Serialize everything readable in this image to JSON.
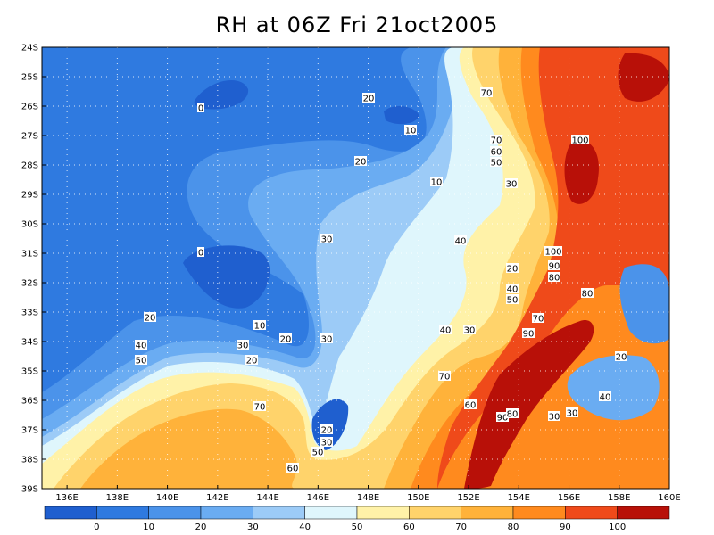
{
  "title": "RH at 06Z Fri 21oct2005",
  "lat_labels": [
    "24S",
    "25S",
    "26S",
    "27S",
    "28S",
    "29S",
    "30S",
    "31S",
    "32S",
    "33S",
    "34S",
    "35S",
    "36S",
    "37S",
    "38S",
    "39S"
  ],
  "lon_labels": [
    "136E",
    "138E",
    "140E",
    "142E",
    "144E",
    "146E",
    "148E",
    "150E",
    "152E",
    "154E",
    "156E",
    "158E",
    "160E"
  ],
  "colorbar": {
    "colors": [
      "#1f5fcf",
      "#2f7ae0",
      "#4b93ea",
      "#6aacf2",
      "#9ccbf7",
      "#dff6fc",
      "#fff2a8",
      "#ffd36b",
      "#ffb23a",
      "#ff8a1e",
      "#ef4a1a",
      "#b81008"
    ],
    "labels": [
      "0",
      "10",
      "20",
      "30",
      "40",
      "50",
      "60",
      "70",
      "80",
      "90",
      "100"
    ]
  },
  "contour_labels": [
    {
      "text": "70"
    },
    {
      "text": "20"
    },
    {
      "text": "0"
    },
    {
      "text": "10"
    },
    {
      "text": "70"
    },
    {
      "text": "60"
    },
    {
      "text": "50"
    },
    {
      "text": "100"
    },
    {
      "text": "20"
    },
    {
      "text": "10"
    },
    {
      "text": "30"
    },
    {
      "text": "30"
    },
    {
      "text": "40"
    },
    {
      "text": "0"
    },
    {
      "text": "100"
    },
    {
      "text": "20"
    },
    {
      "text": "90"
    },
    {
      "text": "80"
    },
    {
      "text": "40"
    },
    {
      "text": "50"
    },
    {
      "text": "80"
    },
    {
      "text": "20"
    },
    {
      "text": "10"
    },
    {
      "text": "20"
    },
    {
      "text": "30"
    },
    {
      "text": "70"
    },
    {
      "text": "40"
    },
    {
      "text": "30"
    },
    {
      "text": "90"
    },
    {
      "text": "40"
    },
    {
      "text": "30"
    },
    {
      "text": "50"
    },
    {
      "text": "20"
    },
    {
      "text": "70"
    },
    {
      "text": "20"
    },
    {
      "text": "60"
    },
    {
      "text": "40"
    },
    {
      "text": "90"
    },
    {
      "text": "80"
    },
    {
      "text": "30"
    },
    {
      "text": "30"
    },
    {
      "text": "70"
    },
    {
      "text": "20"
    },
    {
      "text": "30"
    },
    {
      "text": "50"
    },
    {
      "text": "60"
    }
  ]
}
